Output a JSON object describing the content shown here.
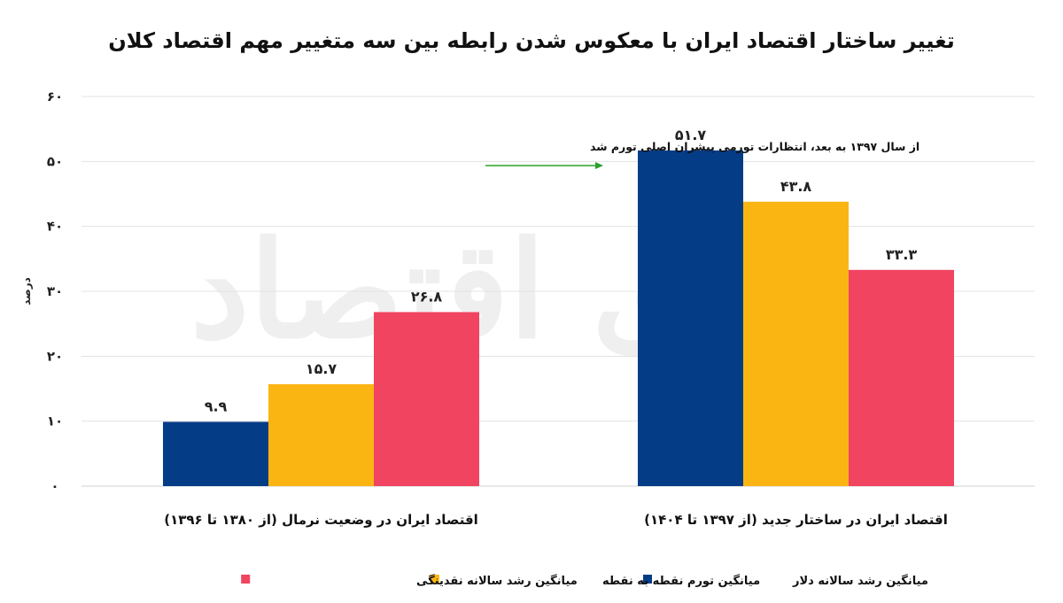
{
  "chart_data": {
    "type": "bar",
    "title": "تغییر ساختار اقتصاد ایران با معکوس شدن رابطه بین سه متغییر مهم اقتصاد کلان",
    "ylabel": "درصد",
    "xlabel": "",
    "ylim": [
      0,
      60
    ],
    "yticks": [
      "۰",
      "۱۰",
      "۲۰",
      "۳۰",
      "۴۰",
      "۵۰",
      "۶۰"
    ],
    "grid": true,
    "legend_position": "bottom",
    "categories": [
      "اقتصاد ایران در ساختار جدید (از ۱۳۹۷ تا ۱۴۰۴)",
      "اقتصاد ایران در وضعیت نرمال (از ۱۳۸۰ تا ۱۳۹۶)"
    ],
    "series": [
      {
        "name": "میانگین رشد سالانه دلار",
        "color": "#053c86",
        "values": [
          51.7,
          9.9
        ],
        "labels": [
          "۵۱.۷",
          "۹.۹"
        ]
      },
      {
        "name": "میانگین تورم نقطه به نقطه",
        "color": "#fbb512",
        "values": [
          43.8,
          15.7
        ],
        "labels": [
          "۴۳.۸",
          "۱۵.۷"
        ]
      },
      {
        "name": "میانگین رشد سالانه نقدینگی",
        "color": "#f04461",
        "values": [
          33.3,
          26.8
        ],
        "labels": [
          "۳۳.۳",
          "۲۶.۸"
        ]
      }
    ],
    "annotation": {
      "text": "از سال ۱۳۹۷ به بعد، انتظارات تورمی پیشران اصلی تورم شد",
      "arrow_color": "#2ca02c"
    },
    "watermark": "دنیای اقتصاد"
  }
}
